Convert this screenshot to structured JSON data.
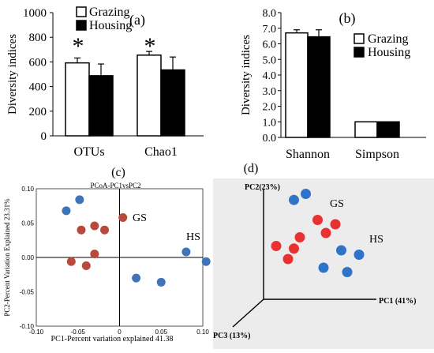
{
  "chart_data": [
    {
      "panel_label": "(a)",
      "type": "bar",
      "categories": [
        "OTUs",
        "Chao1"
      ],
      "series": [
        {
          "name": "Grazing",
          "values": [
            592,
            655
          ],
          "errors": [
            40,
            30
          ],
          "color": "#ffffff"
        },
        {
          "name": "Housing",
          "values": [
            488,
            535
          ],
          "errors": [
            95,
            105
          ],
          "color": "#000000"
        }
      ],
      "significance": [
        "*",
        "*"
      ],
      "ylabel": "Diversity indices",
      "ylim": [
        0,
        1000
      ],
      "yticks": [
        "0",
        "200",
        "400",
        "600",
        "800",
        "1000"
      ],
      "legend": "top-left"
    },
    {
      "panel_label": "(b)",
      "type": "bar",
      "categories": [
        "Shannon",
        "Simpson"
      ],
      "series": [
        {
          "name": "Grazing",
          "values": [
            6.7,
            1.0
          ],
          "errors": [
            0.2,
            0
          ],
          "color": "#ffffff"
        },
        {
          "name": "Housing",
          "values": [
            6.45,
            1.0
          ],
          "errors": [
            0.45,
            0
          ],
          "color": "#000000"
        }
      ],
      "ylabel": "Diversity indices",
      "ylim": [
        0,
        8
      ],
      "yticks": [
        "0.0",
        "1.0",
        "2.0",
        "3.0",
        "4.0",
        "5.0",
        "6.0",
        "7.0",
        "8.0"
      ],
      "legend": "right"
    },
    {
      "panel_label": "(c)",
      "type": "scatter",
      "title": "PCoA-PC1vsPC2",
      "xlabel": "PC1-Percent variation explained 41.38",
      "ylabel": "PC2-Percent Variation Explained 23.31%",
      "xlim": [
        -0.1,
        0.1
      ],
      "ylim": [
        -0.1,
        0.1
      ],
      "xticks": [
        "-0.10",
        "-0.05",
        "0",
        "0.05",
        "0.10"
      ],
      "yticks": [
        "0.10",
        "0.05",
        "0.00",
        "-0.05",
        "-0.10"
      ],
      "annotations": [
        "GS",
        "HS"
      ],
      "series": [
        {
          "group": "GS",
          "color": "#b84a3c",
          "x": [
            0.004,
            -0.018,
            -0.03,
            -0.058,
            -0.04,
            -0.03,
            -0.046
          ],
          "y": [
            0.058,
            0.04,
            0.046,
            -0.006,
            -0.012,
            0.005,
            0.04
          ]
        },
        {
          "group": "HS",
          "color": "#3f74b8",
          "x": [
            -0.064,
            -0.048,
            0.02,
            0.05,
            0.08,
            0.104
          ],
          "y": [
            0.068,
            0.084,
            -0.03,
            -0.036,
            0.008,
            -0.006
          ]
        }
      ]
    },
    {
      "panel_label": "(d)",
      "type": "scatter",
      "axis_labels": [
        "PC1 (41%)",
        "PC2(23%)",
        "PC3 (13%)"
      ],
      "annotations": [
        "GS",
        "HS"
      ],
      "background": "#ececec",
      "series": [
        {
          "group": "GS",
          "color": "#e83232",
          "points": [
            [
              0.7,
              0.6
            ],
            [
              0.55,
              0.65
            ],
            [
              0.62,
              0.5
            ],
            [
              0.4,
              0.45
            ],
            [
              0.35,
              0.32
            ],
            [
              0.2,
              0.35
            ],
            [
              0.3,
              0.2
            ]
          ]
        },
        {
          "group": "HS",
          "color": "#2f74c8",
          "points": [
            [
              0.35,
              0.88
            ],
            [
              0.45,
              0.95
            ],
            [
              0.75,
              0.3
            ],
            [
              0.9,
              0.25
            ],
            [
              0.6,
              0.1
            ],
            [
              0.8,
              0.05
            ]
          ]
        }
      ]
    }
  ]
}
